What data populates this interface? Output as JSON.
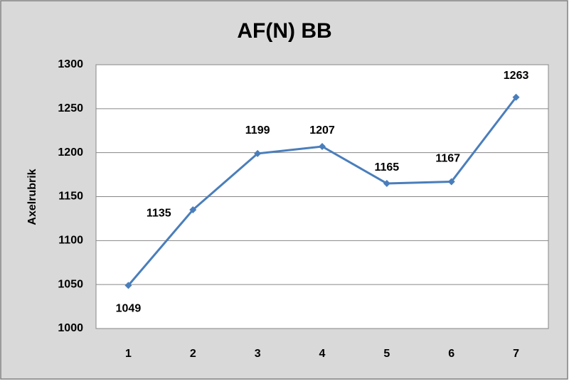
{
  "chart_data": {
    "type": "line",
    "title": "AF(N) BB",
    "y_label": "Axelrubrik",
    "categories": [
      "1",
      "2",
      "3",
      "4",
      "5",
      "6",
      "7"
    ],
    "values": [
      1049,
      1135,
      1199,
      1207,
      1165,
      1167,
      1263
    ],
    "color": "#4a7ebb",
    "ylim": [
      1000,
      1300
    ],
    "yticks": [
      1000,
      1050,
      1100,
      1150,
      1200,
      1250,
      1300
    ],
    "grid": true
  }
}
